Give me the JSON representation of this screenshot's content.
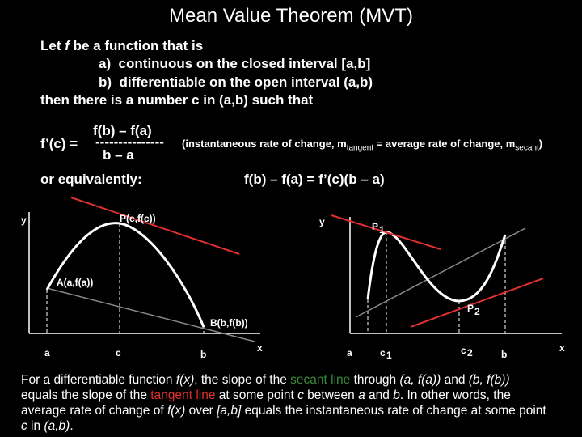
{
  "title": "Mean Value Theorem (MVT)",
  "intro": {
    "line1": [
      "Let ",
      "f",
      " be a function that is"
    ],
    "a": "a)  continuous on the closed interval [a,b]",
    "b": "b)  differentiable on the open interval (a,b)",
    "then": "then there is a number c in (a,b) such that"
  },
  "formula": {
    "lhs": "f’(c) =",
    "numerator": "f(b) – f(a)",
    "bar": "---------------",
    "denominator": "b – a"
  },
  "note": {
    "start": "(instantaneous rate of change, m",
    "sub1": "tangent",
    "mid": " = average rate of change, m",
    "sub2": "secant",
    "end": ")"
  },
  "equivalent": {
    "label": "or equivalently:",
    "equation": "f(b) – f(a) = f’(c)(b – a)"
  },
  "left_graph": {
    "y": "y",
    "x": "x",
    "P": "P(c,f(c))",
    "A": "A(a,f(a))",
    "B": "B(b,f(b))",
    "a": "a",
    "c": "c",
    "b": "b"
  },
  "right_graph": {
    "y": "y",
    "x": "x",
    "P1": "P",
    "P1_sub": "1",
    "P2": "P",
    "P2_sub": "2",
    "a": "a",
    "c1": "c",
    "c1_sub": "1",
    "c2": "c",
    "c2_sub": "2",
    "b": "b"
  },
  "paragraph": [
    "For a differentiable function ",
    "f(x)",
    ", the slope of the ",
    "secant line",
    " through ",
    "(a, f(a))",
    " and ",
    "(b, f(b))",
    " equals the slope of the ",
    "tangent line",
    " at some point ",
    "c",
    " between ",
    "a",
    " and ",
    "b",
    ".  In other words, the average rate of change of ",
    "f(x)",
    " over ",
    "[a,b]",
    " equals the instantaneous rate of change at some point ",
    "c",
    " in ",
    "(a,b)",
    "."
  ]
}
